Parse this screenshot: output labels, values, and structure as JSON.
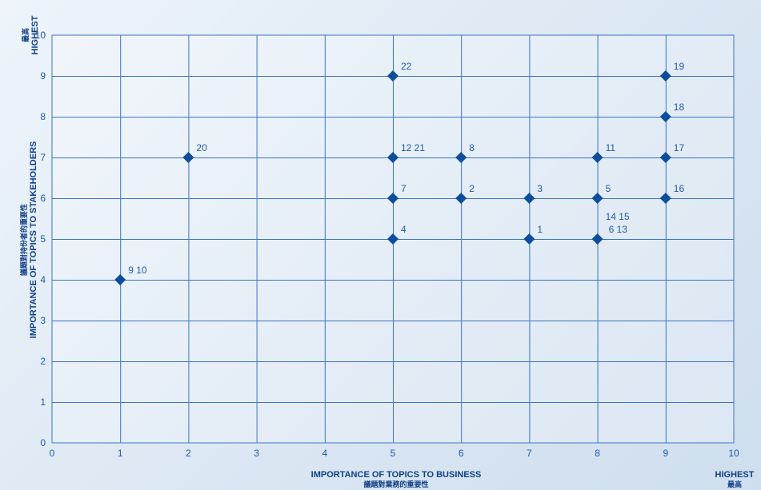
{
  "chart_data": {
    "type": "scatter",
    "x_range": [
      0,
      10
    ],
    "y_range": [
      0,
      10
    ],
    "x_ticks": [
      "0",
      "1",
      "2",
      "3",
      "4",
      "5",
      "6",
      "7",
      "8",
      "9",
      "10"
    ],
    "y_ticks": [
      "0",
      "1",
      "2",
      "3",
      "4",
      "5",
      "6",
      "7",
      "8",
      "9",
      "10"
    ],
    "grid": true,
    "xlabel": "IMPORTANCE OF TOPICS TO BUSINESS",
    "xlabel_zh": "議題對業務的重要性",
    "ylabel": "IMPORTANCE OF TOPICS TO STAKEHOLDERS",
    "ylabel_zh": "議題對持份者的重要性",
    "x_high_label": "HIGHEST",
    "x_high_label_zh": "最高",
    "y_high_label": "HIGHEST",
    "y_high_label_zh": "最高",
    "points": [
      {
        "x": 1,
        "y": 4,
        "label": "9 10"
      },
      {
        "x": 2,
        "y": 7,
        "label": "20"
      },
      {
        "x": 5,
        "y": 9,
        "label": "22"
      },
      {
        "x": 5,
        "y": 7,
        "label": "12 21"
      },
      {
        "x": 5,
        "y": 6,
        "label": "7"
      },
      {
        "x": 5,
        "y": 5,
        "label": "4"
      },
      {
        "x": 6,
        "y": 7,
        "label": "8"
      },
      {
        "x": 6,
        "y": 6,
        "label": "2"
      },
      {
        "x": 7,
        "y": 6,
        "label": "3"
      },
      {
        "x": 7,
        "y": 5,
        "label": "1"
      },
      {
        "x": 8,
        "y": 7,
        "label": "11"
      },
      {
        "x": 8,
        "y": 6,
        "label": "5"
      },
      {
        "x": 8,
        "y": 5,
        "label": "14 15\n6 13"
      },
      {
        "x": 9,
        "y": 9,
        "label": "19"
      },
      {
        "x": 9,
        "y": 8,
        "label": "18"
      },
      {
        "x": 9,
        "y": 7,
        "label": "17"
      },
      {
        "x": 9,
        "y": 6,
        "label": "16"
      }
    ]
  },
  "colors": {
    "marker": "#0d4d9e",
    "axis_text": "#0f3f85",
    "tick_text": "#1f5aa6",
    "grid": "#3a74c6"
  }
}
